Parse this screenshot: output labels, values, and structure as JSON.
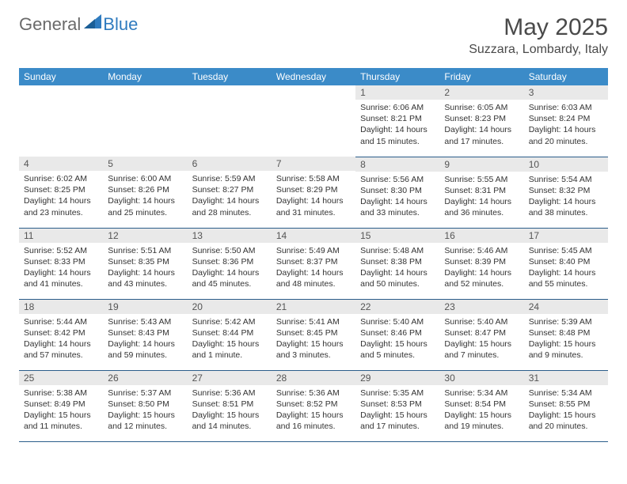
{
  "brand": {
    "part1": "General",
    "part2": "Blue"
  },
  "title": "May 2025",
  "location": "Suzzara, Lombardy, Italy",
  "colors": {
    "header_bg": "#3b8bc8",
    "header_text": "#ffffff",
    "daynum_bg": "#e9e9e9",
    "cell_border": "#2b5d8a",
    "brand_gray": "#6a6a6a",
    "brand_blue": "#2f7bbf",
    "text": "#333333"
  },
  "day_headers": [
    "Sunday",
    "Monday",
    "Tuesday",
    "Wednesday",
    "Thursday",
    "Friday",
    "Saturday"
  ],
  "weeks": [
    [
      null,
      null,
      null,
      null,
      {
        "n": "1",
        "sr": "Sunrise: 6:06 AM",
        "ss": "Sunset: 8:21 PM",
        "dl": "Daylight: 14 hours and 15 minutes."
      },
      {
        "n": "2",
        "sr": "Sunrise: 6:05 AM",
        "ss": "Sunset: 8:23 PM",
        "dl": "Daylight: 14 hours and 17 minutes."
      },
      {
        "n": "3",
        "sr": "Sunrise: 6:03 AM",
        "ss": "Sunset: 8:24 PM",
        "dl": "Daylight: 14 hours and 20 minutes."
      }
    ],
    [
      {
        "n": "4",
        "sr": "Sunrise: 6:02 AM",
        "ss": "Sunset: 8:25 PM",
        "dl": "Daylight: 14 hours and 23 minutes."
      },
      {
        "n": "5",
        "sr": "Sunrise: 6:00 AM",
        "ss": "Sunset: 8:26 PM",
        "dl": "Daylight: 14 hours and 25 minutes."
      },
      {
        "n": "6",
        "sr": "Sunrise: 5:59 AM",
        "ss": "Sunset: 8:27 PM",
        "dl": "Daylight: 14 hours and 28 minutes."
      },
      {
        "n": "7",
        "sr": "Sunrise: 5:58 AM",
        "ss": "Sunset: 8:29 PM",
        "dl": "Daylight: 14 hours and 31 minutes."
      },
      {
        "n": "8",
        "sr": "Sunrise: 5:56 AM",
        "ss": "Sunset: 8:30 PM",
        "dl": "Daylight: 14 hours and 33 minutes."
      },
      {
        "n": "9",
        "sr": "Sunrise: 5:55 AM",
        "ss": "Sunset: 8:31 PM",
        "dl": "Daylight: 14 hours and 36 minutes."
      },
      {
        "n": "10",
        "sr": "Sunrise: 5:54 AM",
        "ss": "Sunset: 8:32 PM",
        "dl": "Daylight: 14 hours and 38 minutes."
      }
    ],
    [
      {
        "n": "11",
        "sr": "Sunrise: 5:52 AM",
        "ss": "Sunset: 8:33 PM",
        "dl": "Daylight: 14 hours and 41 minutes."
      },
      {
        "n": "12",
        "sr": "Sunrise: 5:51 AM",
        "ss": "Sunset: 8:35 PM",
        "dl": "Daylight: 14 hours and 43 minutes."
      },
      {
        "n": "13",
        "sr": "Sunrise: 5:50 AM",
        "ss": "Sunset: 8:36 PM",
        "dl": "Daylight: 14 hours and 45 minutes."
      },
      {
        "n": "14",
        "sr": "Sunrise: 5:49 AM",
        "ss": "Sunset: 8:37 PM",
        "dl": "Daylight: 14 hours and 48 minutes."
      },
      {
        "n": "15",
        "sr": "Sunrise: 5:48 AM",
        "ss": "Sunset: 8:38 PM",
        "dl": "Daylight: 14 hours and 50 minutes."
      },
      {
        "n": "16",
        "sr": "Sunrise: 5:46 AM",
        "ss": "Sunset: 8:39 PM",
        "dl": "Daylight: 14 hours and 52 minutes."
      },
      {
        "n": "17",
        "sr": "Sunrise: 5:45 AM",
        "ss": "Sunset: 8:40 PM",
        "dl": "Daylight: 14 hours and 55 minutes."
      }
    ],
    [
      {
        "n": "18",
        "sr": "Sunrise: 5:44 AM",
        "ss": "Sunset: 8:42 PM",
        "dl": "Daylight: 14 hours and 57 minutes."
      },
      {
        "n": "19",
        "sr": "Sunrise: 5:43 AM",
        "ss": "Sunset: 8:43 PM",
        "dl": "Daylight: 14 hours and 59 minutes."
      },
      {
        "n": "20",
        "sr": "Sunrise: 5:42 AM",
        "ss": "Sunset: 8:44 PM",
        "dl": "Daylight: 15 hours and 1 minute."
      },
      {
        "n": "21",
        "sr": "Sunrise: 5:41 AM",
        "ss": "Sunset: 8:45 PM",
        "dl": "Daylight: 15 hours and 3 minutes."
      },
      {
        "n": "22",
        "sr": "Sunrise: 5:40 AM",
        "ss": "Sunset: 8:46 PM",
        "dl": "Daylight: 15 hours and 5 minutes."
      },
      {
        "n": "23",
        "sr": "Sunrise: 5:40 AM",
        "ss": "Sunset: 8:47 PM",
        "dl": "Daylight: 15 hours and 7 minutes."
      },
      {
        "n": "24",
        "sr": "Sunrise: 5:39 AM",
        "ss": "Sunset: 8:48 PM",
        "dl": "Daylight: 15 hours and 9 minutes."
      }
    ],
    [
      {
        "n": "25",
        "sr": "Sunrise: 5:38 AM",
        "ss": "Sunset: 8:49 PM",
        "dl": "Daylight: 15 hours and 11 minutes."
      },
      {
        "n": "26",
        "sr": "Sunrise: 5:37 AM",
        "ss": "Sunset: 8:50 PM",
        "dl": "Daylight: 15 hours and 12 minutes."
      },
      {
        "n": "27",
        "sr": "Sunrise: 5:36 AM",
        "ss": "Sunset: 8:51 PM",
        "dl": "Daylight: 15 hours and 14 minutes."
      },
      {
        "n": "28",
        "sr": "Sunrise: 5:36 AM",
        "ss": "Sunset: 8:52 PM",
        "dl": "Daylight: 15 hours and 16 minutes."
      },
      {
        "n": "29",
        "sr": "Sunrise: 5:35 AM",
        "ss": "Sunset: 8:53 PM",
        "dl": "Daylight: 15 hours and 17 minutes."
      },
      {
        "n": "30",
        "sr": "Sunrise: 5:34 AM",
        "ss": "Sunset: 8:54 PM",
        "dl": "Daylight: 15 hours and 19 minutes."
      },
      {
        "n": "31",
        "sr": "Sunrise: 5:34 AM",
        "ss": "Sunset: 8:55 PM",
        "dl": "Daylight: 15 hours and 20 minutes."
      }
    ]
  ]
}
